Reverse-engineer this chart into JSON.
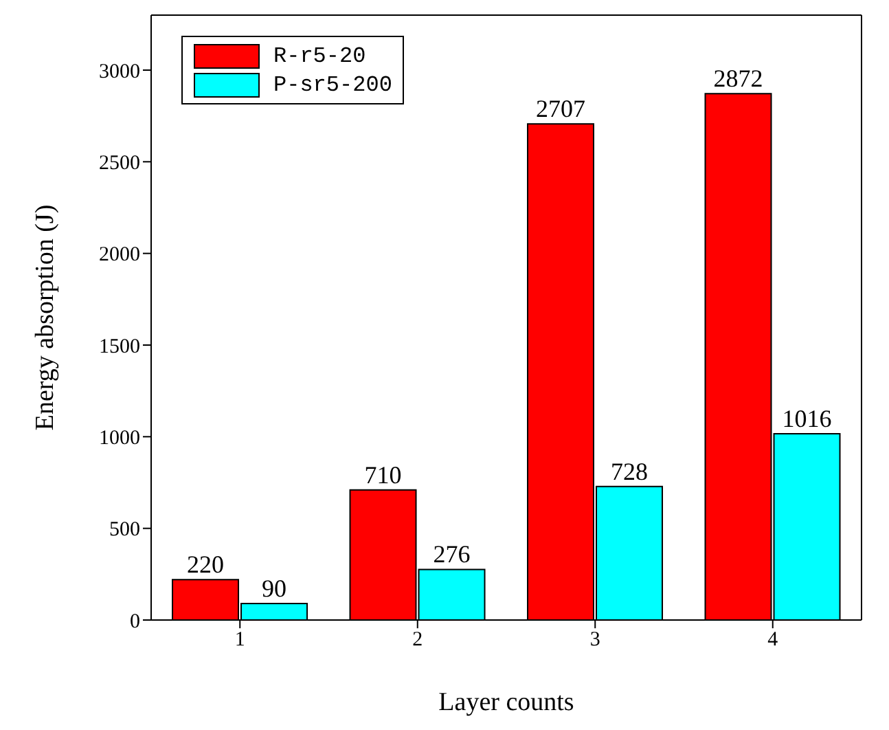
{
  "chart_data": {
    "type": "bar",
    "xlabel": "Layer counts",
    "ylabel": "Energy absorption (J)",
    "categories": [
      "1",
      "2",
      "3",
      "4"
    ],
    "series": [
      {
        "name": "R-r5-20",
        "color": "#ff0000",
        "values": [
          220,
          710,
          2707,
          2872
        ]
      },
      {
        "name": "P-sr5-200",
        "color": "#00ffff",
        "values": [
          90,
          276,
          728,
          1016
        ]
      }
    ],
    "ylim": [
      0,
      3300
    ],
    "yticks": [
      0,
      500,
      1000,
      1500,
      2000,
      2500,
      3000
    ],
    "data_labels": true,
    "legend": "top left",
    "grid": false
  }
}
